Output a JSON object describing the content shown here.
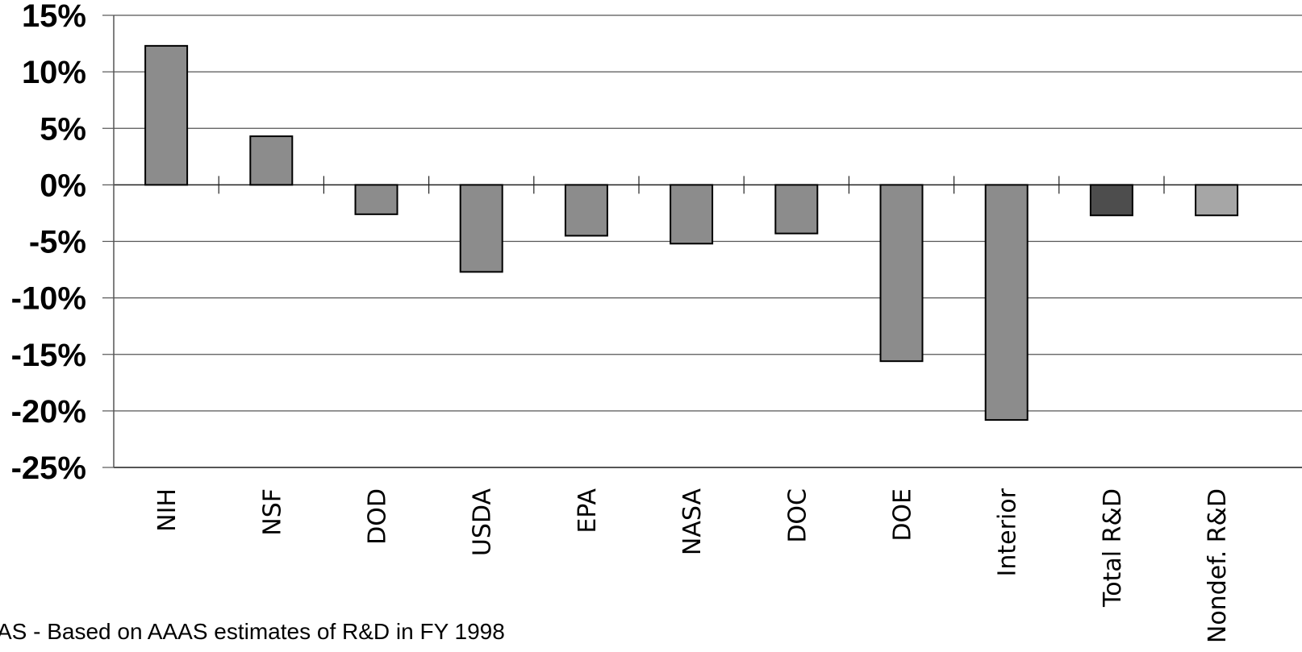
{
  "chart_data": {
    "type": "bar",
    "categories": [
      "NIH",
      "NSF",
      "DOD",
      "USDA",
      "EPA",
      "NASA",
      "DOC",
      "DOE",
      "Interior",
      "Total R&D",
      "Nondef. R&D"
    ],
    "values": [
      12.3,
      4.3,
      -2.6,
      -7.7,
      -4.5,
      -5.2,
      -4.3,
      -15.6,
      -20.8,
      -2.7,
      -2.7
    ],
    "bar_colors": [
      "#8c8c8c",
      "#8c8c8c",
      "#8c8c8c",
      "#8c8c8c",
      "#8c8c8c",
      "#8c8c8c",
      "#8c8c8c",
      "#8c8c8c",
      "#8c8c8c",
      "#4d4d4d",
      "#a6a6a6"
    ],
    "y_ticks": [
      "15%",
      "10%",
      "5%",
      "0%",
      "-5%",
      "-10%",
      "-15%",
      "-20%",
      "-25%"
    ],
    "ylim": [
      -25,
      15
    ],
    "grid": true,
    "title": "",
    "xlabel": "",
    "ylabel": ""
  },
  "footnote": "AS - Based on AAAS estimates of R&D in FY 1998"
}
